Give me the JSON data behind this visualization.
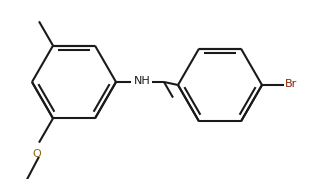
{
  "background_color": "#ffffff",
  "line_color": "#1a1a1a",
  "label_color_O": "#8B6914",
  "label_color_Br": "#8B2500",
  "label_color_NH": "#1a1a1a",
  "line_width": 1.5,
  "fig_width": 3.16,
  "fig_height": 1.79,
  "dpi": 100,
  "xlim": [
    0,
    316
  ],
  "ylim": [
    0,
    179
  ]
}
